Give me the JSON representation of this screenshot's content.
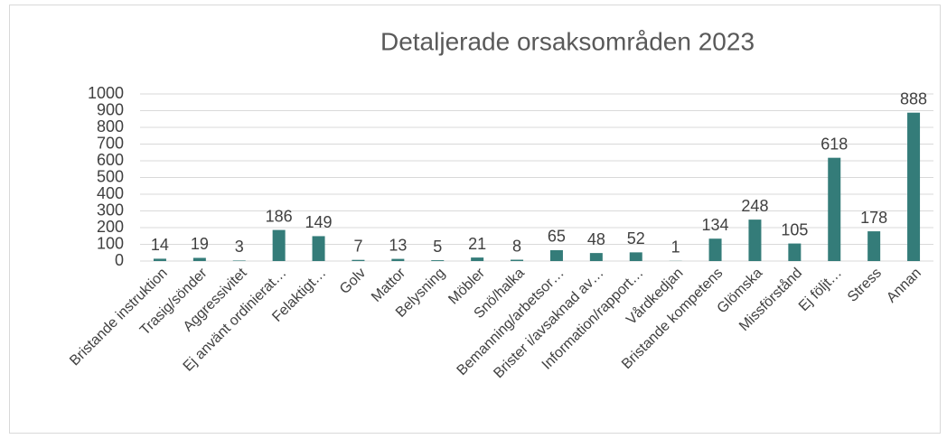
{
  "chart_data": {
    "type": "bar",
    "title": "Detaljerade orsaksområden 2023",
    "categories": [
      "Bristande instruktion",
      "Trasig/sönder",
      "Aggressivitet",
      "Ej använt ordinierat…",
      "Felaktigt…",
      "Golv",
      "Mattor",
      "Belysning",
      "Möbler",
      "Snö/halka",
      "Bemanning/arbetsor…",
      "Brister i/avsaknad av…",
      "Information/rapport…",
      "Vårdkedjan",
      "Bristande kompetens",
      "Glömska",
      "Missförstånd",
      "Ej följt…",
      "Stress",
      "Annan"
    ],
    "values": [
      14,
      19,
      3,
      186,
      149,
      7,
      13,
      5,
      21,
      8,
      65,
      48,
      52,
      1,
      134,
      248,
      105,
      618,
      178,
      888
    ],
    "color": "#347c79",
    "ylim": [
      0,
      1000
    ],
    "yticks": [
      0,
      100,
      200,
      300,
      400,
      500,
      600,
      700,
      800,
      900,
      1000
    ],
    "grid": true
  }
}
